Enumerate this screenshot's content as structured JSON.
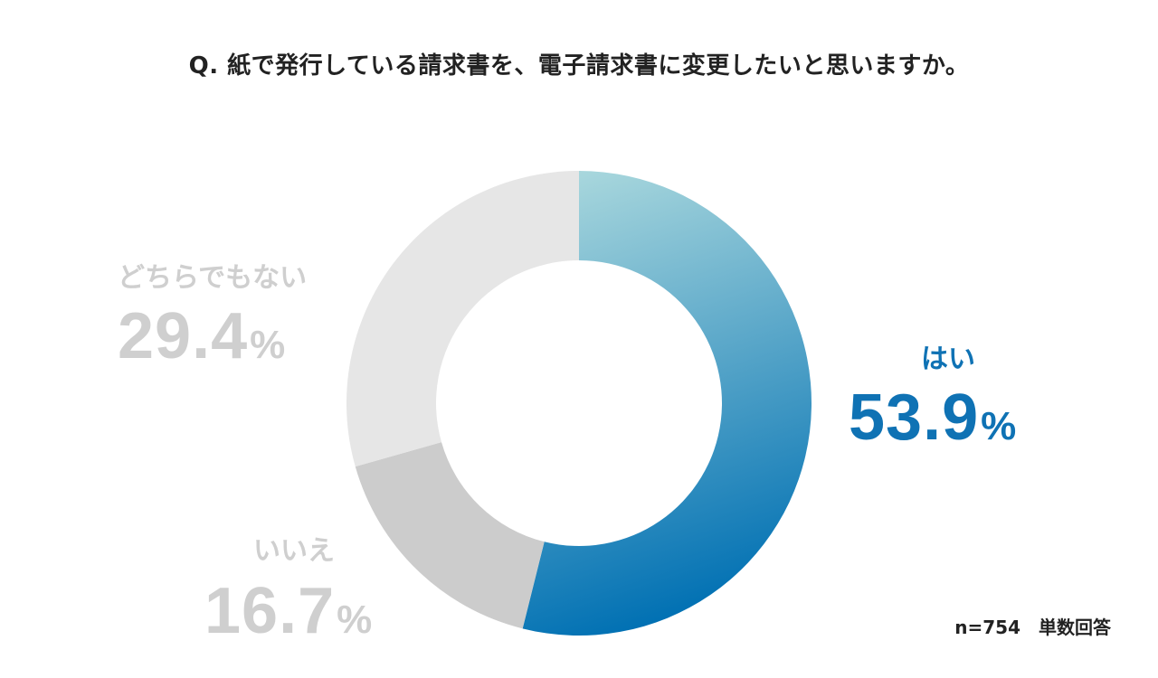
{
  "title": "Q. 紙で発行している請求書を、電子請求書に変更したいと思いますか。",
  "note": "n=754　単数回答",
  "colors": {
    "yes_start": "#aad8dd",
    "yes_end": "#0070b3",
    "no": "#cccccc",
    "neither": "#e6e6e6"
  },
  "chart_data": {
    "type": "pie",
    "donut": true,
    "title": "Q. 紙で発行している請求書を、電子請求書に変更したいと思いますか。",
    "unit": "%",
    "slices": [
      {
        "label": "はい",
        "value": 53.9,
        "display": "53.9"
      },
      {
        "label": "いいえ",
        "value": 16.7,
        "display": "16.7"
      },
      {
        "label": "どちらでもない",
        "value": 29.4,
        "display": "29.4"
      }
    ]
  }
}
